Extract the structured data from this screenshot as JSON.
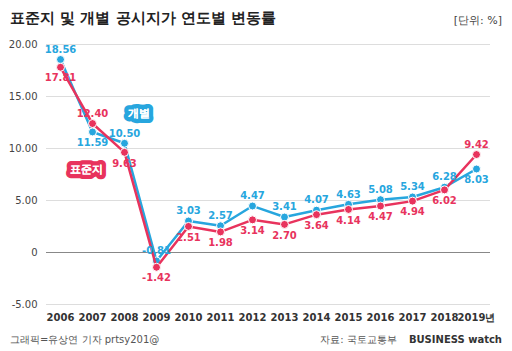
{
  "chart_data": {
    "type": "line",
    "title": "표준지 및 개별 공시지가 연도별 변동률",
    "subtitle": "[단위: %]",
    "source": "자료: 국토교통부",
    "annotations": [
      "그래픽=유상연 기자 prtsy201@",
      "BUSINESS watch"
    ],
    "categories": [
      "2006",
      "2007",
      "2008",
      "2009",
      "2010",
      "2011",
      "2012",
      "2013",
      "2014",
      "2015",
      "2016",
      "2017",
      "2018",
      "2019년"
    ],
    "series": [
      {
        "name": "개별",
        "color": "#27a6de",
        "marker": "circle",
        "line_style": "solid",
        "values": [
          18.56,
          11.59,
          10.5,
          -0.81,
          3.03,
          2.57,
          4.47,
          3.41,
          4.07,
          4.63,
          5.08,
          5.34,
          6.28,
          8.03
        ],
        "value_labels": [
          "18.56",
          "11.59",
          "10.50",
          "-0.81",
          "3.03",
          "2.57",
          "4.47",
          "3.41",
          "4.07",
          "4.63",
          "5.08",
          "5.34",
          "6.28",
          "8.03"
        ]
      },
      {
        "name": "표준지",
        "color": "#e8335d",
        "marker": "circle",
        "line_style": "solid",
        "values": [
          17.81,
          12.4,
          9.63,
          -1.42,
          2.51,
          1.98,
          3.14,
          2.7,
          3.64,
          4.14,
          4.47,
          4.94,
          6.02,
          9.42
        ],
        "value_labels": [
          "17.81",
          "12.40",
          "9.63",
          "-1.42",
          "2.51",
          "1.98",
          "3.14",
          "2.70",
          "3.64",
          "4.14",
          "4.47",
          "4.94",
          "6.02",
          "9.42"
        ]
      }
    ],
    "ylim": [
      -5,
      20
    ],
    "yticks": [
      {
        "value": -5,
        "label": "-5.00"
      },
      {
        "value": 0,
        "label": "0"
      },
      {
        "value": 5,
        "label": "5.00"
      },
      {
        "value": 10,
        "label": "10.00"
      },
      {
        "value": 15,
        "label": "15.00"
      },
      {
        "value": 20,
        "label": "20.00"
      }
    ],
    "grid": true,
    "data_labels": true
  }
}
